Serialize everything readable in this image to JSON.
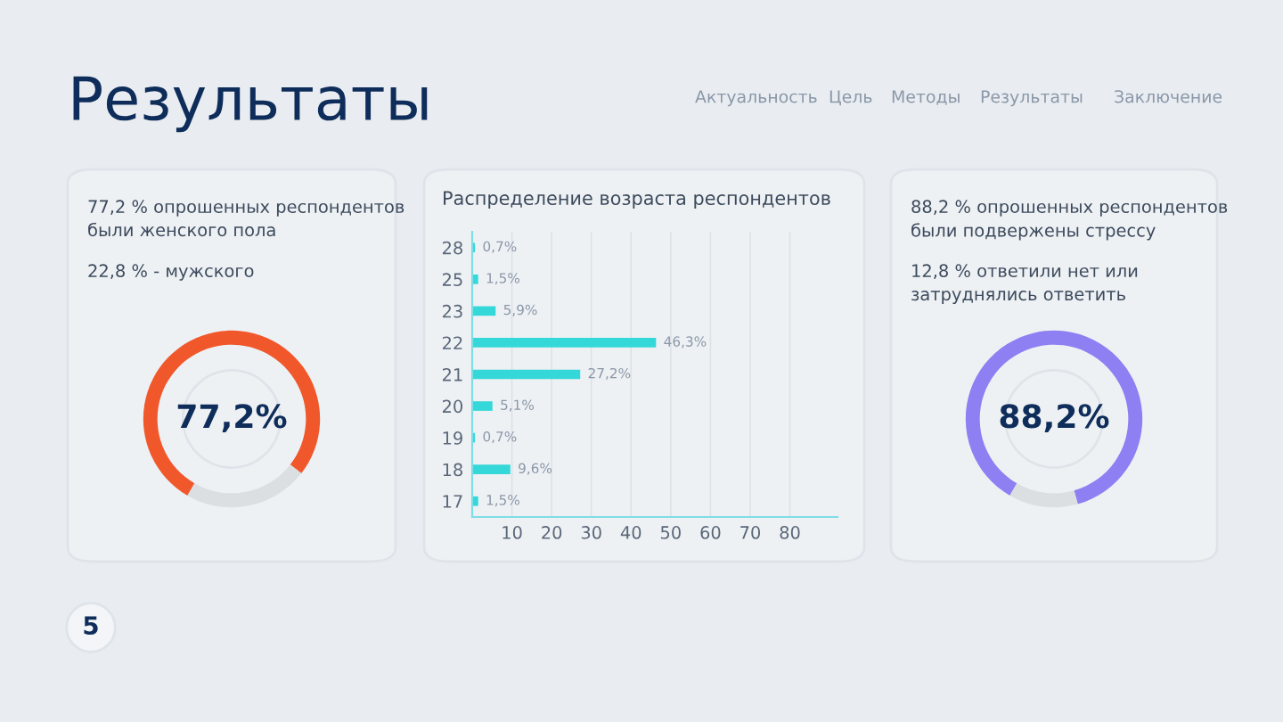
{
  "chart_data": [
    {
      "type": "other",
      "title": "Результаты",
      "annotations": [
        "Актуальность",
        "Цель",
        "Методы",
        "Результаты",
        "Заключение",
        "5"
      ]
    },
    {
      "type": "donut",
      "categories": [
        null,
        null
      ],
      "values": [
        77.2,
        22.8
      ],
      "colors": [
        "#f0582c",
        "#dcdfe2"
      ],
      "annotations": [
        "77,2%",
        "77,2 % опрошенных респондентов\nбыли женского пола",
        "22,8 % - мужского"
      ]
    },
    {
      "type": "bar",
      "orientation": "horizontal",
      "title": "Распределение возраста респондентов",
      "categories": [
        "28",
        "25",
        "23",
        "22",
        "21",
        "20",
        "19",
        "18",
        "17"
      ],
      "values": [
        0.7,
        1.5,
        5.9,
        46.3,
        27.2,
        5.1,
        0.7,
        9.6,
        1.5
      ],
      "color": "#34d8d8",
      "value_labels": [
        "0,7%",
        "1,5%",
        "5,9%",
        "46,3%",
        "27,2%",
        "5,1%",
        "0,7%",
        "9,6%",
        "1,5%"
      ],
      "xlim": [
        0,
        92
      ],
      "xticks": [
        10,
        20,
        30,
        40,
        50,
        60,
        70,
        80
      ],
      "grid": "x"
    },
    {
      "type": "donut",
      "categories": [
        null,
        null
      ],
      "values": [
        88.2,
        12.8
      ],
      "colors": [
        "#8e80f2",
        "#dcdfe2"
      ],
      "annotations": [
        "88,2%",
        "88,2 % опрошенных респондентов\nбыли подвержены стрессу",
        "12,8 % ответили нет или\nзатруднялись ответить"
      ]
    }
  ]
}
